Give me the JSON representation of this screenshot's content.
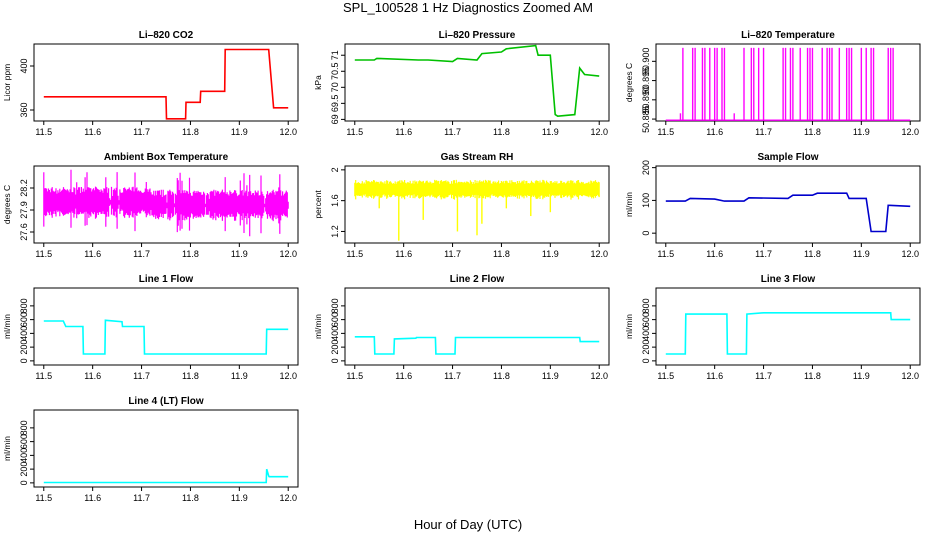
{
  "figure": {
    "title": "SPL_100528  1 Hz Diagnostics Zoomed AM",
    "xlabel": "Hour of Day (UTC)"
  },
  "chart_data": [
    {
      "type": "line",
      "title": "Li–820 CO2",
      "ylabel": "Licor ppm",
      "color": "#ff0000",
      "xlim": [
        11.5,
        12.0
      ],
      "ylim": [
        350,
        420
      ],
      "yticks": [
        360,
        400
      ],
      "xticks": [
        "11.5",
        "11.6",
        "11.7",
        "11.8",
        "11.9",
        "12.0"
      ],
      "series": [
        {
          "name": "",
          "x": [
            11.5,
            11.75,
            11.751,
            11.79,
            11.791,
            11.82,
            11.821,
            11.87,
            11.871,
            11.96,
            11.97,
            12.0
          ],
          "y": [
            372,
            372,
            352,
            352,
            367,
            367,
            377,
            377,
            415,
            415,
            362,
            362
          ]
        }
      ]
    },
    {
      "type": "line",
      "title": "Li–820 Pressure",
      "ylabel": "kPa",
      "color": "#00c000",
      "xlim": [
        11.5,
        12.0
      ],
      "ylim": [
        68.95,
        71.35
      ],
      "yticks": [
        69.0,
        69.5,
        70.0,
        70.5,
        71.0
      ],
      "xticks": [
        "11.5",
        "11.6",
        "11.7",
        "11.8",
        "11.9",
        "12.0"
      ],
      "series": [
        {
          "name": "",
          "x": [
            11.5,
            11.54,
            11.545,
            11.63,
            11.65,
            11.7,
            11.71,
            11.75,
            11.76,
            11.8,
            11.81,
            11.87,
            11.875,
            11.9,
            11.91,
            11.915,
            11.95,
            11.96,
            11.97,
            12.0
          ],
          "y": [
            70.85,
            70.85,
            70.9,
            70.85,
            70.85,
            70.8,
            70.9,
            70.85,
            71.05,
            71.1,
            71.2,
            71.3,
            71.0,
            71.0,
            69.15,
            69.1,
            69.15,
            70.6,
            70.4,
            70.35
          ]
        }
      ]
    },
    {
      "type": "line",
      "title": "Li–820 Temperature",
      "ylabel": "degrees C",
      "color": "#ff00ff",
      "xlim": [
        11.5,
        12.0
      ],
      "ylim": [
        50.8845,
        50.9045
      ],
      "yticks": [
        50.885,
        50.89,
        50.895,
        50.9
      ],
      "ytick_labels": [
        "50.885",
        "50.890",
        "50.895",
        "50.900"
      ],
      "xticks": [
        "11.5",
        "11.6",
        "11.7",
        "11.8",
        "11.9",
        "12.0"
      ],
      "baseline": 50.8847,
      "spikes": [
        {
          "x": 11.53,
          "y": 50.8865
        },
        {
          "x": 11.535,
          "y": 50.9035
        },
        {
          "x": 11.555,
          "y": 50.9035
        },
        {
          "x": 11.56,
          "y": 50.9035
        },
        {
          "x": 11.575,
          "y": 50.9035
        },
        {
          "x": 11.58,
          "y": 50.9035
        },
        {
          "x": 11.59,
          "y": 50.9035
        },
        {
          "x": 11.6,
          "y": 50.9035
        },
        {
          "x": 11.605,
          "y": 50.9035
        },
        {
          "x": 11.615,
          "y": 50.9035
        },
        {
          "x": 11.62,
          "y": 50.9035
        },
        {
          "x": 11.64,
          "y": 50.8865
        },
        {
          "x": 11.66,
          "y": 50.9035
        },
        {
          "x": 11.675,
          "y": 50.9035
        },
        {
          "x": 11.68,
          "y": 50.9035
        },
        {
          "x": 11.69,
          "y": 50.9035
        },
        {
          "x": 11.7,
          "y": 50.9035
        },
        {
          "x": 11.74,
          "y": 50.9035
        },
        {
          "x": 11.745,
          "y": 50.9035
        },
        {
          "x": 11.755,
          "y": 50.9035
        },
        {
          "x": 11.76,
          "y": 50.9035
        },
        {
          "x": 11.775,
          "y": 50.9035
        },
        {
          "x": 11.79,
          "y": 50.9035
        },
        {
          "x": 11.795,
          "y": 50.9035
        },
        {
          "x": 11.8,
          "y": 50.9035
        },
        {
          "x": 11.82,
          "y": 50.9035
        },
        {
          "x": 11.83,
          "y": 50.9035
        },
        {
          "x": 11.835,
          "y": 50.9035
        },
        {
          "x": 11.84,
          "y": 50.9035
        },
        {
          "x": 11.855,
          "y": 50.9035
        },
        {
          "x": 11.87,
          "y": 50.9035
        },
        {
          "x": 11.875,
          "y": 50.9035
        },
        {
          "x": 11.88,
          "y": 50.9035
        },
        {
          "x": 11.9,
          "y": 50.9035
        },
        {
          "x": 11.91,
          "y": 50.9035
        },
        {
          "x": 11.92,
          "y": 50.9035
        },
        {
          "x": 11.925,
          "y": 50.9035
        },
        {
          "x": 11.955,
          "y": 50.9035
        },
        {
          "x": 11.96,
          "y": 50.9035
        },
        {
          "x": 11.965,
          "y": 50.9035
        }
      ]
    },
    {
      "type": "line",
      "title": "Ambient Box Temperature",
      "ylabel": "degrees C",
      "color": "#ff00ff",
      "xlim": [
        11.5,
        12.0
      ],
      "ylim": [
        27.45,
        28.5
      ],
      "yticks": [
        27.6,
        27.9,
        28.2
      ],
      "xticks": [
        "11.5",
        "11.6",
        "11.7",
        "11.8",
        "11.9",
        "12.0"
      ],
      "band": {
        "center": 27.97,
        "halfwidth": 0.22,
        "spike_halfwidth": 0.45
      }
    },
    {
      "type": "line",
      "title": "Gas Stream RH",
      "ylabel": "percent",
      "color": "#ffff00",
      "xlim": [
        11.5,
        12.0
      ],
      "ylim": [
        1.05,
        2.05
      ],
      "yticks": [
        1.2,
        1.6,
        2.0
      ],
      "xticks": [
        "11.5",
        "11.6",
        "11.7",
        "11.8",
        "11.9",
        "12.0"
      ],
      "band": {
        "center": 1.74,
        "halfwidth": 0.13
      },
      "spikes": [
        {
          "x": 11.59,
          "y": 1.08
        },
        {
          "x": 11.64,
          "y": 1.35
        },
        {
          "x": 11.71,
          "y": 1.2
        },
        {
          "x": 11.75,
          "y": 1.15
        },
        {
          "x": 11.76,
          "y": 1.3
        },
        {
          "x": 11.86,
          "y": 1.4
        },
        {
          "x": 11.9,
          "y": 1.45
        },
        {
          "x": 11.55,
          "y": 1.5
        },
        {
          "x": 11.81,
          "y": 1.5
        }
      ]
    },
    {
      "type": "line",
      "title": "Sample Flow",
      "ylabel": "ml/min",
      "color": "#0000cc",
      "xlim": [
        11.5,
        12.0
      ],
      "ylim": [
        -30,
        205
      ],
      "yticks": [
        0,
        100,
        200
      ],
      "xticks": [
        "11.5",
        "11.6",
        "11.7",
        "11.8",
        "11.9",
        "12.0"
      ],
      "series": [
        {
          "name": "",
          "x": [
            11.5,
            11.54,
            11.55,
            11.6,
            11.62,
            11.66,
            11.67,
            11.75,
            11.76,
            11.8,
            11.81,
            11.87,
            11.875,
            11.91,
            11.92,
            11.95,
            11.955,
            12.0
          ],
          "y": [
            98,
            98,
            106,
            104,
            98,
            98,
            108,
            106,
            116,
            116,
            122,
            122,
            106,
            106,
            5,
            5,
            85,
            82
          ]
        }
      ]
    },
    {
      "type": "line",
      "title": "Line 1 Flow",
      "ylabel": "ml/min",
      "color": "#00ffff",
      "xlim": [
        11.5,
        12.0
      ],
      "ylim": [
        -60,
        1060
      ],
      "yticks": [
        0,
        200,
        400,
        600,
        800
      ],
      "xticks": [
        "11.5",
        "11.6",
        "11.7",
        "11.8",
        "11.9",
        "12.0"
      ],
      "series": [
        {
          "name": "",
          "x": [
            11.5,
            11.54,
            11.545,
            11.58,
            11.581,
            11.625,
            11.626,
            11.66,
            11.661,
            11.705,
            11.706,
            11.955,
            11.956,
            12.0
          ],
          "y": [
            580,
            580,
            500,
            500,
            100,
            100,
            590,
            570,
            500,
            500,
            100,
            100,
            460,
            460
          ]
        }
      ]
    },
    {
      "type": "line",
      "title": "Line 2 Flow",
      "ylabel": "ml/min",
      "color": "#00ffff",
      "xlim": [
        11.5,
        12.0
      ],
      "ylim": [
        -60,
        1060
      ],
      "yticks": [
        0,
        200,
        400,
        600,
        800
      ],
      "xticks": [
        "11.5",
        "11.6",
        "11.7",
        "11.8",
        "11.9",
        "12.0"
      ],
      "series": [
        {
          "name": "",
          "x": [
            11.5,
            11.54,
            11.541,
            11.58,
            11.581,
            11.625,
            11.626,
            11.665,
            11.666,
            11.705,
            11.706,
            11.96,
            11.961,
            12.0
          ],
          "y": [
            350,
            350,
            100,
            100,
            320,
            330,
            340,
            340,
            100,
            100,
            340,
            340,
            280,
            280
          ]
        }
      ]
    },
    {
      "type": "line",
      "title": "Line 3 Flow",
      "ylabel": "ml/min",
      "color": "#00ffff",
      "xlim": [
        11.5,
        12.0
      ],
      "ylim": [
        -60,
        1060
      ],
      "yticks": [
        0,
        200,
        400,
        600,
        800
      ],
      "xticks": [
        "11.5",
        "11.6",
        "11.7",
        "11.8",
        "11.9",
        "12.0"
      ],
      "series": [
        {
          "name": "",
          "x": [
            11.5,
            11.54,
            11.541,
            11.625,
            11.626,
            11.665,
            11.666,
            11.7,
            11.8,
            11.96,
            11.961,
            12.0
          ],
          "y": [
            100,
            100,
            680,
            680,
            100,
            100,
            680,
            700,
            700,
            700,
            600,
            600
          ]
        }
      ]
    },
    {
      "type": "line",
      "title": "Line 4 (LT) Flow",
      "ylabel": "ml/min",
      "color": "#00ffff",
      "xlim": [
        11.5,
        12.0
      ],
      "ylim": [
        -60,
        1060
      ],
      "yticks": [
        0,
        200,
        400,
        600,
        800
      ],
      "xticks": [
        "11.5",
        "11.6",
        "11.7",
        "11.8",
        "11.9",
        "12.0"
      ],
      "series": [
        {
          "name": "",
          "x": [
            11.5,
            11.955,
            11.956,
            11.96,
            11.961,
            12.0
          ],
          "y": [
            5,
            5,
            200,
            100,
            90,
            90
          ]
        }
      ]
    }
  ]
}
